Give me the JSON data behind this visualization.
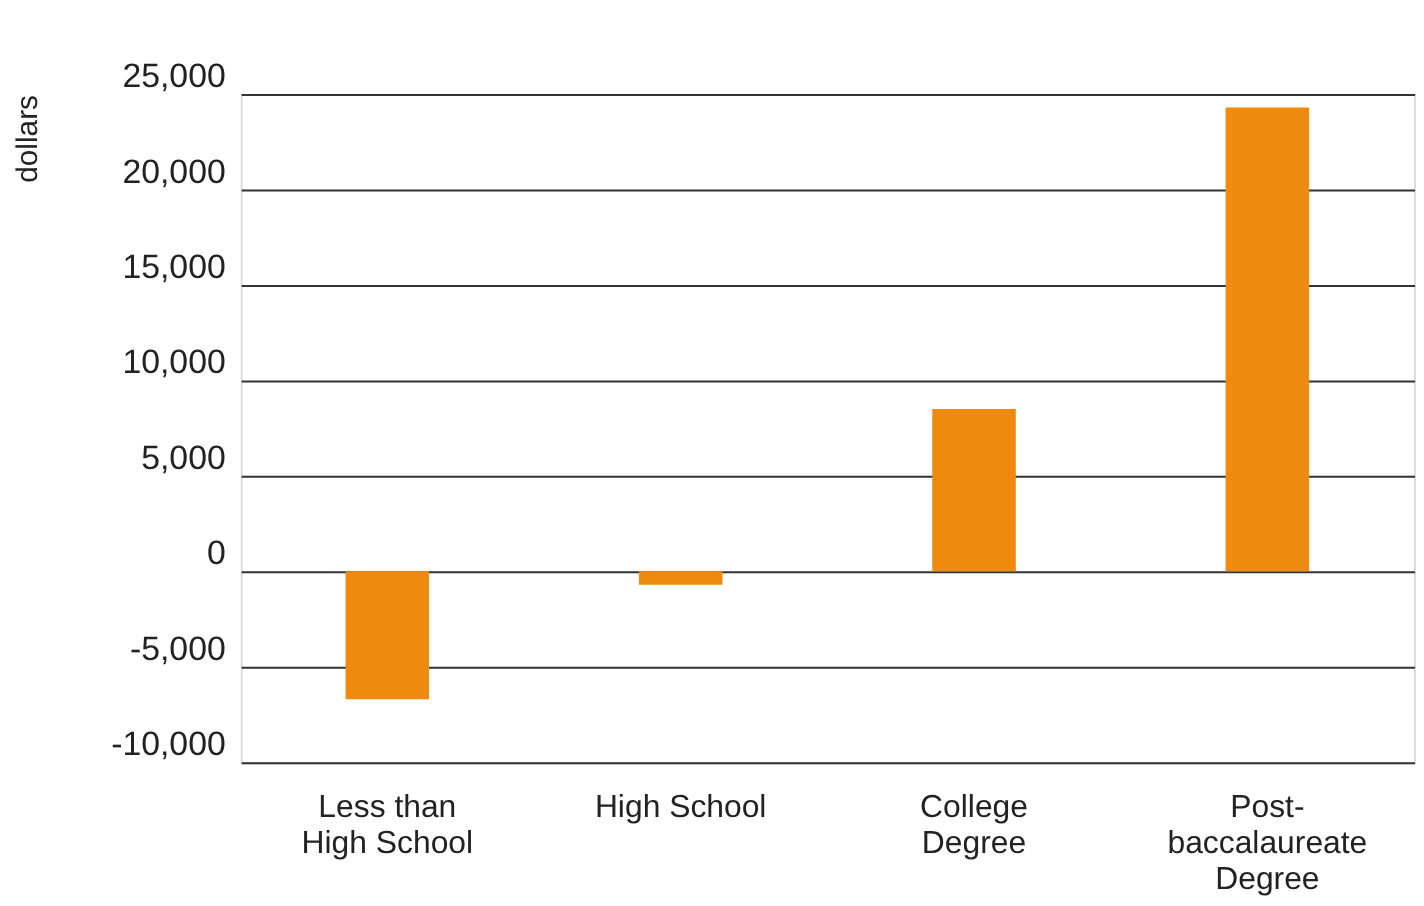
{
  "chart_data": {
    "type": "bar",
    "ylabel": "dollars",
    "categories": [
      "Less than High School",
      "High School",
      "College Degree",
      "Post-baccalaureate Degree"
    ],
    "values": [
      -6700,
      -700,
      8500,
      24300
    ],
    "color": "#ee8a10",
    "ylim": [
      -10000,
      25000
    ],
    "yticks": [
      {
        "value": -10000,
        "label": "-10,000"
      },
      {
        "value": -5000,
        "label": "-5,000"
      },
      0,
      {
        "value": 5000,
        "label": "5,000"
      },
      {
        "value": 10000,
        "label": "10,000"
      },
      {
        "value": 15000,
        "label": "15,000"
      },
      {
        "value": 20000,
        "label": "20,000"
      },
      {
        "value": 25000,
        "label": "25,000"
      }
    ],
    "grid": "y"
  }
}
